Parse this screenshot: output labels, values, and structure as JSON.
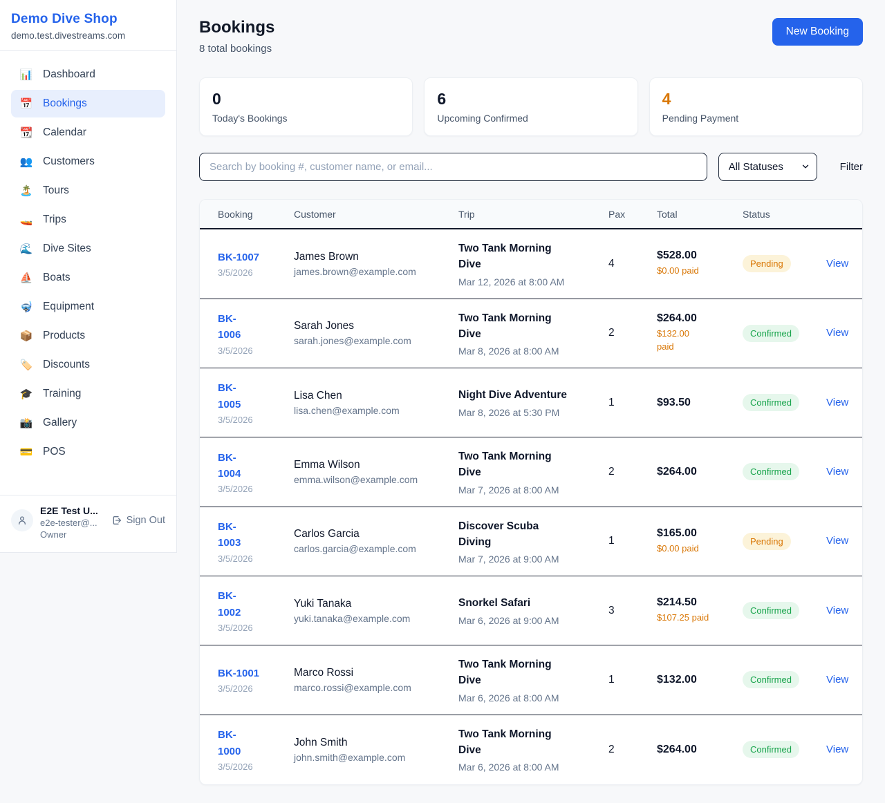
{
  "brand": {
    "name": "Demo Dive Shop",
    "domain": "demo.test.divestreams.com"
  },
  "sidebar": {
    "items": [
      {
        "slug": "dashboard",
        "icon": "📊",
        "icon_name": "bar-chart-icon",
        "label": "Dashboard",
        "active": false
      },
      {
        "slug": "bookings",
        "icon": "📅",
        "icon_name": "calendar-icon",
        "label": "Bookings",
        "active": true
      },
      {
        "slug": "calendar",
        "icon": "📆",
        "icon_name": "tear-off-calendar-icon",
        "label": "Calendar",
        "active": false
      },
      {
        "slug": "customers",
        "icon": "👥",
        "icon_name": "people-icon",
        "label": "Customers",
        "active": false
      },
      {
        "slug": "tours",
        "icon": "🏝️",
        "icon_name": "island-icon",
        "label": "Tours",
        "active": false
      },
      {
        "slug": "trips",
        "icon": "🚤",
        "icon_name": "speedboat-icon",
        "label": "Trips",
        "active": false
      },
      {
        "slug": "dive-sites",
        "icon": "🌊",
        "icon_name": "wave-icon",
        "label": "Dive Sites",
        "active": false
      },
      {
        "slug": "boats",
        "icon": "⛵",
        "icon_name": "sailboat-icon",
        "label": "Boats",
        "active": false
      },
      {
        "slug": "equipment",
        "icon": "🤿",
        "icon_name": "diving-mask-icon",
        "label": "Equipment",
        "active": false
      },
      {
        "slug": "products",
        "icon": "📦",
        "icon_name": "package-icon",
        "label": "Products",
        "active": false
      },
      {
        "slug": "discounts",
        "icon": "🏷️",
        "icon_name": "tag-icon",
        "label": "Discounts",
        "active": false
      },
      {
        "slug": "training",
        "icon": "🎓",
        "icon_name": "graduation-cap-icon",
        "label": "Training",
        "active": false
      },
      {
        "slug": "gallery",
        "icon": "📸",
        "icon_name": "camera-icon",
        "label": "Gallery",
        "active": false
      },
      {
        "slug": "pos",
        "icon": "💳",
        "icon_name": "credit-card-icon",
        "label": "POS",
        "active": false
      }
    ]
  },
  "user": {
    "name": "E2E Test U...",
    "email": "e2e-tester@...",
    "role": "Owner",
    "sign_out_label": "Sign Out"
  },
  "header": {
    "title": "Bookings",
    "subtitle": "8 total bookings",
    "new_booking_label": "New Booking"
  },
  "stats": [
    {
      "value": "0",
      "label": "Today's Bookings",
      "accent": false
    },
    {
      "value": "6",
      "label": "Upcoming Confirmed",
      "accent": false
    },
    {
      "value": "4",
      "label": "Pending Payment",
      "accent": true
    }
  ],
  "filters": {
    "search_placeholder": "Search by booking #, customer name, or email...",
    "status_selected": "All Statuses",
    "filter_label": "Filter"
  },
  "table": {
    "columns": [
      "Booking",
      "Customer",
      "Trip",
      "Pax",
      "Total",
      "Status",
      ""
    ],
    "rows": [
      {
        "id_line1": "BK-1007",
        "id_line2": "",
        "date": "3/5/2026",
        "name": "James Brown",
        "email": "james.brown@example.com",
        "trip_line1": "Two Tank Morning",
        "trip_line2": "Dive",
        "trip_date": "Mar 12, 2026 at 8:00 AM",
        "pax": "4",
        "total": "$528.00",
        "paid_line1": "$0.00 paid",
        "paid_line2": "",
        "status": "Pending",
        "status_type": "pending",
        "view_label": "View"
      },
      {
        "id_line1": "BK-",
        "id_line2": "1006",
        "date": "3/5/2026",
        "name": "Sarah Jones",
        "email": "sarah.jones@example.com",
        "trip_line1": "Two Tank Morning",
        "trip_line2": "Dive",
        "trip_date": "Mar 8, 2026 at 8:00 AM",
        "pax": "2",
        "total": "$264.00",
        "paid_line1": "$132.00",
        "paid_line2": "paid",
        "status": "Confirmed",
        "status_type": "confirmed",
        "view_label": "View"
      },
      {
        "id_line1": "BK-",
        "id_line2": "1005",
        "date": "3/5/2026",
        "name": "Lisa Chen",
        "email": "lisa.chen@example.com",
        "trip_line1": "Night Dive Adventure",
        "trip_line2": "",
        "trip_date": "Mar 8, 2026 at 5:30 PM",
        "pax": "1",
        "total": "$93.50",
        "paid_line1": "",
        "paid_line2": "",
        "status": "Confirmed",
        "status_type": "confirmed",
        "view_label": "View"
      },
      {
        "id_line1": "BK-",
        "id_line2": "1004",
        "date": "3/5/2026",
        "name": "Emma Wilson",
        "email": "emma.wilson@example.com",
        "trip_line1": "Two Tank Morning",
        "trip_line2": "Dive",
        "trip_date": "Mar 7, 2026 at 8:00 AM",
        "pax": "2",
        "total": "$264.00",
        "paid_line1": "",
        "paid_line2": "",
        "status": "Confirmed",
        "status_type": "confirmed",
        "view_label": "View"
      },
      {
        "id_line1": "BK-",
        "id_line2": "1003",
        "date": "3/5/2026",
        "name": "Carlos Garcia",
        "email": "carlos.garcia@example.com",
        "trip_line1": "Discover Scuba",
        "trip_line2": "Diving",
        "trip_date": "Mar 7, 2026 at 9:00 AM",
        "pax": "1",
        "total": "$165.00",
        "paid_line1": "$0.00 paid",
        "paid_line2": "",
        "status": "Pending",
        "status_type": "pending",
        "view_label": "View"
      },
      {
        "id_line1": "BK-",
        "id_line2": "1002",
        "date": "3/5/2026",
        "name": "Yuki Tanaka",
        "email": "yuki.tanaka@example.com",
        "trip_line1": "Snorkel Safari",
        "trip_line2": "",
        "trip_date": "Mar 6, 2026 at 9:00 AM",
        "pax": "3",
        "total": "$214.50",
        "paid_line1": "$107.25 paid",
        "paid_line2": "",
        "status": "Confirmed",
        "status_type": "confirmed",
        "view_label": "View"
      },
      {
        "id_line1": "BK-1001",
        "id_line2": "",
        "date": "3/5/2026",
        "name": "Marco Rossi",
        "email": "marco.rossi@example.com",
        "trip_line1": "Two Tank Morning",
        "trip_line2": "Dive",
        "trip_date": "Mar 6, 2026 at 8:00 AM",
        "pax": "1",
        "total": "$132.00",
        "paid_line1": "",
        "paid_line2": "",
        "status": "Confirmed",
        "status_type": "confirmed",
        "view_label": "View"
      },
      {
        "id_line1": "BK-",
        "id_line2": "1000",
        "date": "3/5/2026",
        "name": "John Smith",
        "email": "john.smith@example.com",
        "trip_line1": "Two Tank Morning",
        "trip_line2": "Dive",
        "trip_date": "Mar 6, 2026 at 8:00 AM",
        "pax": "2",
        "total": "$264.00",
        "paid_line1": "",
        "paid_line2": "",
        "status": "Confirmed",
        "status_type": "confirmed",
        "view_label": "View"
      }
    ]
  },
  "colors": {
    "accent_blue": "#2563eb",
    "orange": "#d97706",
    "green": "#16a34a",
    "pending_badge_bg": "#fcf3d9",
    "confirmed_badge_bg": "#e6f7ec",
    "page_bg": "#f7f8fa"
  }
}
